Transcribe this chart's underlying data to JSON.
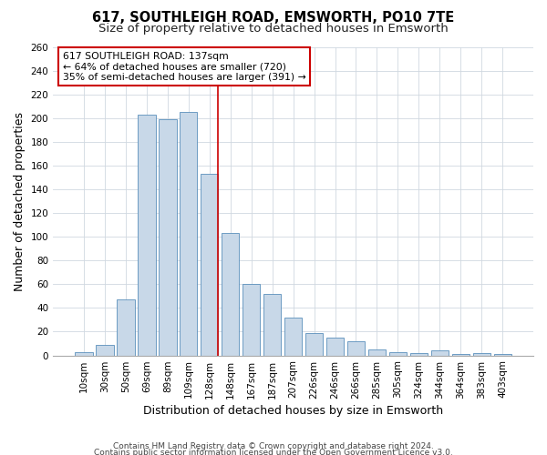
{
  "title": "617, SOUTHLEIGH ROAD, EMSWORTH, PO10 7TE",
  "subtitle": "Size of property relative to detached houses in Emsworth",
  "xlabel": "Distribution of detached houses by size in Emsworth",
  "ylabel": "Number of detached properties",
  "bar_labels": [
    "10sqm",
    "30sqm",
    "50sqm",
    "69sqm",
    "89sqm",
    "109sqm",
    "128sqm",
    "148sqm",
    "167sqm",
    "187sqm",
    "207sqm",
    "226sqm",
    "246sqm",
    "266sqm",
    "285sqm",
    "305sqm",
    "324sqm",
    "344sqm",
    "364sqm",
    "383sqm",
    "403sqm"
  ],
  "bar_values": [
    3,
    9,
    47,
    203,
    199,
    205,
    153,
    103,
    60,
    52,
    32,
    19,
    15,
    12,
    5,
    3,
    2,
    4,
    1,
    2,
    1
  ],
  "bar_color": "#c8d8e8",
  "bar_edge_color": "#5a8fbc",
  "highlight_line_color": "#cc0000",
  "annotation_line1": "617 SOUTHLEIGH ROAD: 137sqm",
  "annotation_line2": "← 64% of detached houses are smaller (720)",
  "annotation_line3": "35% of semi-detached houses are larger (391) →",
  "annotation_box_edge_color": "#cc0000",
  "annotation_box_face_color": "#ffffff",
  "ylim": [
    0,
    260
  ],
  "yticks": [
    0,
    20,
    40,
    60,
    80,
    100,
    120,
    140,
    160,
    180,
    200,
    220,
    240,
    260
  ],
  "footer_line1": "Contains HM Land Registry data © Crown copyright and database right 2024.",
  "footer_line2": "Contains public sector information licensed under the Open Government Licence v3.0.",
  "background_color": "#ffffff",
  "grid_color": "#d0d8e0",
  "title_fontsize": 10.5,
  "subtitle_fontsize": 9.5,
  "axis_label_fontsize": 9,
  "tick_fontsize": 7.5,
  "footer_fontsize": 6.5
}
